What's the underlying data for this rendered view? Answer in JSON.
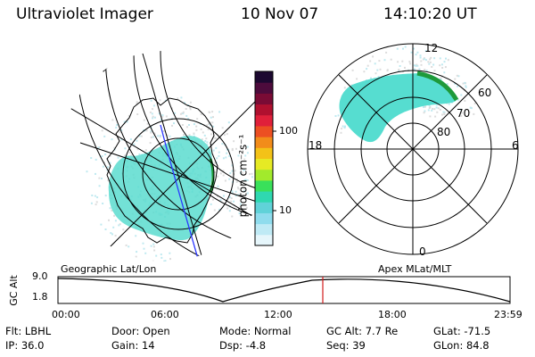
{
  "header": {
    "title": "Ultraviolet Imager",
    "date": "10 Nov 07",
    "time": "14:10:20 UT"
  },
  "colorbar": {
    "unit_label": "photon cm⁻²s⁻¹",
    "tick_labels": [
      "100",
      "10"
    ],
    "colors": [
      "#e6f6fb",
      "#bfeaf5",
      "#8fdced",
      "#60d2d8",
      "#2fd8b0",
      "#39e05a",
      "#a2ea2c",
      "#e6ea24",
      "#f3c218",
      "#f28c1a",
      "#ec4f22",
      "#e0203a",
      "#b0102f",
      "#7a0b35",
      "#4d0b3c",
      "#1c0830"
    ]
  },
  "polar_plot": {
    "ring_labels": [
      "60",
      "70",
      "80"
    ],
    "mlt_labels": [
      "12",
      "18",
      "6",
      "0"
    ],
    "blob_color": "#56ddd0"
  },
  "geo_map": {
    "blob_color": "#5adccf",
    "track_color": "#2a36ff",
    "edge_color": "#1e9a3a"
  },
  "timeline": {
    "ylabel": "GC Alt",
    "y_ticks": [
      "9.0",
      "1.8"
    ],
    "left_label": "Geographic Lat/Lon",
    "right_label": "Apex MLat/MLT",
    "x_ticks": [
      "00:00",
      "06:00",
      "12:00",
      "18:00",
      "23:59"
    ],
    "marker_color": "#d11c1c"
  },
  "info": {
    "flt": "Flt: LBHL",
    "ip": "IP: 36.0",
    "door": "Door: Open",
    "gain": "Gain: 14",
    "mode": "Mode:  Normal",
    "dsp": "Dsp:    -4.8",
    "gcalt": "GC Alt:  7.7 Re",
    "seq": "Seq:  39",
    "glat": "GLat:  -71.5",
    "glon": "GLon:   84.8"
  }
}
